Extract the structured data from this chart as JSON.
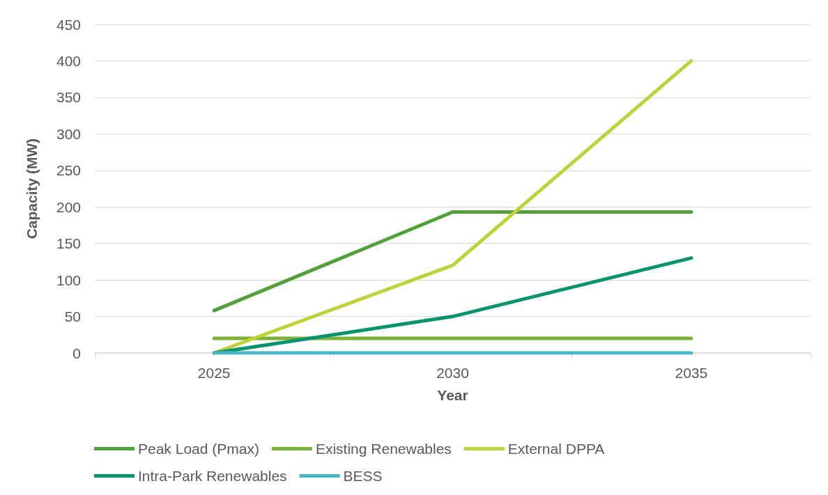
{
  "chart_data": {
    "type": "line",
    "xlabel": "Year",
    "ylabel": "Capacity (MW)",
    "categories": [
      "2025",
      "2030",
      "2035"
    ],
    "ylim": [
      0,
      450
    ],
    "yticks": [
      0,
      50,
      100,
      150,
      200,
      250,
      300,
      350,
      400,
      450
    ],
    "grid": "y",
    "legend": "bottom",
    "marker": "none",
    "line_style": "solid",
    "series": [
      {
        "name": "Peak Load (Pmax)",
        "color": "#52a03c",
        "values": [
          58,
          193,
          193
        ]
      },
      {
        "name": "Existing Renewables",
        "color": "#7db23a",
        "values": [
          20,
          20,
          20
        ]
      },
      {
        "name": "External DPPA",
        "color": "#bfd23c",
        "values": [
          0,
          120,
          400
        ]
      },
      {
        "name": "Intra-Park Renewables",
        "color": "#06936e",
        "values": [
          0,
          50,
          130
        ]
      },
      {
        "name": "BESS",
        "color": "#4bb6c6",
        "values": [
          0,
          0,
          0
        ]
      }
    ]
  }
}
